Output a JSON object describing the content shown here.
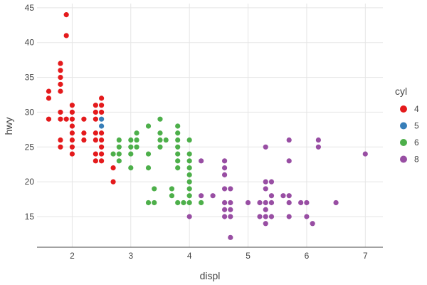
{
  "chart_data": {
    "type": "scatter",
    "xlabel": "displ",
    "ylabel": "hwy",
    "xlim": [
      1.4,
      7.3
    ],
    "ylim": [
      10.6,
      45.6
    ],
    "x_ticks": [
      2,
      3,
      4,
      5,
      6,
      7
    ],
    "y_ticks": [
      15,
      20,
      25,
      30,
      35,
      40,
      45
    ],
    "grid": true,
    "legend": {
      "title": "cyl",
      "placement": "right"
    },
    "series": [
      {
        "name": "4",
        "color": "#e41a1c",
        "points": [
          [
            1.6,
            33
          ],
          [
            1.6,
            32
          ],
          [
            1.6,
            29
          ],
          [
            1.8,
            37
          ],
          [
            1.8,
            36
          ],
          [
            1.8,
            35
          ],
          [
            1.8,
            34
          ],
          [
            1.8,
            33
          ],
          [
            1.8,
            30
          ],
          [
            1.8,
            29
          ],
          [
            1.8,
            26
          ],
          [
            1.8,
            25
          ],
          [
            1.9,
            44
          ],
          [
            1.9,
            41
          ],
          [
            1.9,
            29
          ],
          [
            2.0,
            31
          ],
          [
            2.0,
            30
          ],
          [
            2.0,
            29
          ],
          [
            2.0,
            28
          ],
          [
            2.0,
            27
          ],
          [
            2.0,
            26
          ],
          [
            2.0,
            25
          ],
          [
            2.0,
            24
          ],
          [
            2.2,
            29
          ],
          [
            2.2,
            27
          ],
          [
            2.2,
            26
          ],
          [
            2.4,
            31
          ],
          [
            2.4,
            30
          ],
          [
            2.4,
            29
          ],
          [
            2.4,
            27
          ],
          [
            2.4,
            26
          ],
          [
            2.4,
            24
          ],
          [
            2.4,
            23
          ],
          [
            2.5,
            32
          ],
          [
            2.5,
            31
          ],
          [
            2.5,
            30
          ],
          [
            2.5,
            27
          ],
          [
            2.5,
            26
          ],
          [
            2.5,
            25
          ],
          [
            2.5,
            24
          ],
          [
            2.5,
            23
          ],
          [
            2.7,
            22
          ],
          [
            2.7,
            20
          ]
        ]
      },
      {
        "name": "5",
        "color": "#377eb8",
        "points": [
          [
            2.5,
            29
          ],
          [
            2.5,
            28
          ]
        ]
      },
      {
        "name": "6",
        "color": "#4daf4a",
        "points": [
          [
            2.7,
            24
          ],
          [
            2.8,
            26
          ],
          [
            2.8,
            25
          ],
          [
            2.8,
            24
          ],
          [
            2.8,
            23
          ],
          [
            3.0,
            26
          ],
          [
            3.0,
            25
          ],
          [
            3.0,
            24
          ],
          [
            3.0,
            22
          ],
          [
            3.1,
            27
          ],
          [
            3.1,
            26
          ],
          [
            3.1,
            25
          ],
          [
            3.3,
            28
          ],
          [
            3.3,
            24
          ],
          [
            3.3,
            22
          ],
          [
            3.3,
            17
          ],
          [
            3.4,
            19
          ],
          [
            3.4,
            17
          ],
          [
            3.5,
            29
          ],
          [
            3.5,
            27
          ],
          [
            3.5,
            26
          ],
          [
            3.5,
            25
          ],
          [
            3.6,
            26
          ],
          [
            3.7,
            19
          ],
          [
            3.7,
            18
          ],
          [
            3.8,
            28
          ],
          [
            3.8,
            27
          ],
          [
            3.8,
            26
          ],
          [
            3.8,
            25
          ],
          [
            3.8,
            24
          ],
          [
            3.8,
            23
          ],
          [
            3.8,
            22
          ],
          [
            3.8,
            17
          ],
          [
            3.9,
            17
          ],
          [
            4.0,
            26
          ],
          [
            4.0,
            24
          ],
          [
            4.0,
            23
          ],
          [
            4.0,
            22
          ],
          [
            4.0,
            21
          ],
          [
            4.0,
            20
          ],
          [
            4.0,
            19
          ],
          [
            4.0,
            18
          ],
          [
            4.0,
            17
          ],
          [
            4.2,
            17
          ]
        ]
      },
      {
        "name": "8",
        "color": "#984ea3",
        "points": [
          [
            4.0,
            15
          ],
          [
            4.2,
            23
          ],
          [
            4.2,
            18
          ],
          [
            4.4,
            18
          ],
          [
            4.6,
            23
          ],
          [
            4.6,
            22
          ],
          [
            4.6,
            21
          ],
          [
            4.6,
            19
          ],
          [
            4.6,
            17
          ],
          [
            4.6,
            16
          ],
          [
            4.6,
            15
          ],
          [
            4.7,
            19
          ],
          [
            4.7,
            17
          ],
          [
            4.7,
            16
          ],
          [
            4.7,
            15
          ],
          [
            4.7,
            12
          ],
          [
            5.0,
            17
          ],
          [
            5.2,
            17
          ],
          [
            5.2,
            15
          ],
          [
            5.3,
            25
          ],
          [
            5.3,
            20
          ],
          [
            5.3,
            19
          ],
          [
            5.3,
            17
          ],
          [
            5.3,
            16
          ],
          [
            5.3,
            15
          ],
          [
            5.3,
            14
          ],
          [
            5.4,
            20
          ],
          [
            5.4,
            18
          ],
          [
            5.4,
            17
          ],
          [
            5.4,
            15
          ],
          [
            5.6,
            18
          ],
          [
            5.7,
            26
          ],
          [
            5.7,
            23
          ],
          [
            5.7,
            18
          ],
          [
            5.7,
            17
          ],
          [
            5.7,
            15
          ],
          [
            5.9,
            17
          ],
          [
            6.0,
            17
          ],
          [
            6.0,
            15
          ],
          [
            6.1,
            14
          ],
          [
            6.2,
            26
          ],
          [
            6.2,
            25
          ],
          [
            6.5,
            17
          ],
          [
            7.0,
            24
          ]
        ]
      }
    ]
  }
}
